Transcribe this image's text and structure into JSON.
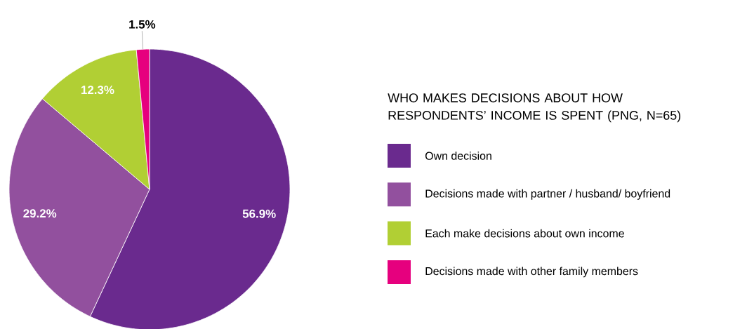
{
  "chart_data": {
    "type": "pie",
    "legend_title": "WHO MAKES DECISIONS ABOUT HOW RESPONDENTS’ INCOME IS SPENT (PNG, N=65)",
    "categories": [
      "Own decision",
      "Decisions made with partner / husband/ boyfriend",
      "Each make decisions about own income",
      "Decisions made with other family members"
    ],
    "values": [
      56.9,
      29.2,
      12.3,
      1.5
    ],
    "value_labels": [
      "56.9%",
      "29.2%",
      "12.3%",
      "1.5%"
    ],
    "colors": [
      "#6a2a8e",
      "#92509e",
      "#b1cf34",
      "#e6007e"
    ],
    "legend": "right"
  }
}
